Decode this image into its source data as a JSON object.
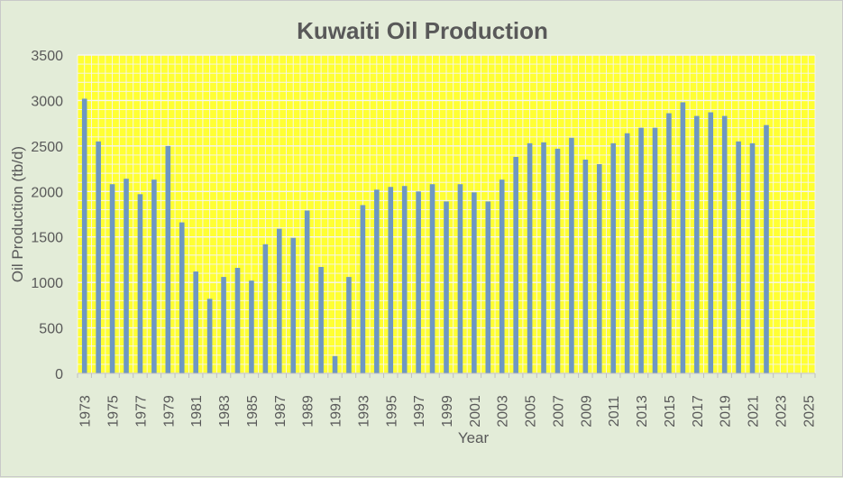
{
  "chart_data": {
    "type": "bar",
    "title": "Kuwaiti Oil Production",
    "xlabel": "Year",
    "ylabel": "Oil Production (tb/d)",
    "ylim": [
      0,
      3500
    ],
    "y_ticks": [
      0,
      500,
      1000,
      1500,
      2000,
      2500,
      3000,
      3500
    ],
    "x_tick_labels": [
      "1973",
      "1975",
      "1977",
      "1979",
      "1981",
      "1983",
      "1985",
      "1987",
      "1989",
      "1991",
      "1993",
      "1995",
      "1997",
      "1999",
      "2001",
      "2003",
      "2005",
      "2007",
      "2009",
      "2011",
      "2013",
      "2015",
      "2017",
      "2019",
      "2021",
      "2023",
      "2025"
    ],
    "categories": [
      "1973",
      "1974",
      "1975",
      "1976",
      "1977",
      "1978",
      "1979",
      "1980",
      "1981",
      "1982",
      "1983",
      "1984",
      "1985",
      "1986",
      "1987",
      "1988",
      "1989",
      "1990",
      "1991",
      "1992",
      "1993",
      "1994",
      "1995",
      "1996",
      "1997",
      "1998",
      "1999",
      "2000",
      "2001",
      "2002",
      "2003",
      "2004",
      "2005",
      "2006",
      "2007",
      "2008",
      "2009",
      "2010",
      "2011",
      "2012",
      "2013",
      "2014",
      "2015",
      "2016",
      "2017",
      "2018",
      "2019",
      "2020",
      "2021",
      "2022",
      "2023",
      "2024",
      "2025"
    ],
    "series": [
      {
        "values": [
          3020,
          2550,
          2080,
          2140,
          1970,
          2130,
          2500,
          1660,
          1120,
          820,
          1060,
          1160,
          1020,
          1420,
          1590,
          1490,
          1790,
          1170,
          190,
          1060,
          1850,
          2020,
          2050,
          2060,
          2000,
          2080,
          1890,
          2080,
          1990,
          1890,
          2130,
          2380,
          2530,
          2540,
          2470,
          2590,
          2350,
          2300,
          2530,
          2640,
          2700,
          2700,
          2860,
          2980,
          2830,
          2870,
          2830,
          2550,
          2530,
          2730,
          null,
          null,
          null
        ]
      }
    ],
    "colors": {
      "bar": "#6e97c2",
      "plot_background": "#ffff33",
      "grid": "#f5f5f5",
      "chart_background": "#e3ecd8",
      "text": "#595959"
    },
    "grid": true,
    "legend": "none"
  }
}
